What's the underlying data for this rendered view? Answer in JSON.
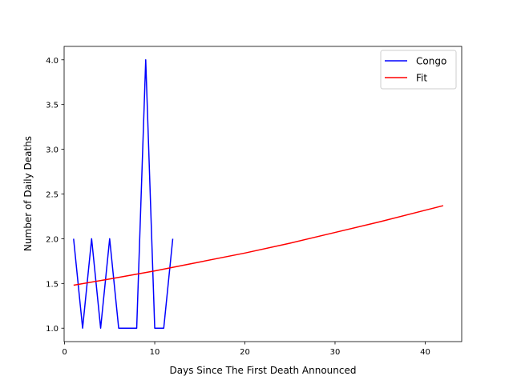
{
  "chart_data": {
    "type": "line",
    "title": "",
    "xlabel": "Days Since The First Death Announced",
    "ylabel": "Number of Daily Deaths",
    "xlim": [
      -0.05,
      44.05
    ],
    "ylim": [
      0.85,
      4.15
    ],
    "xticks": [
      0,
      10,
      20,
      30,
      40
    ],
    "xtick_labels": [
      "0",
      "10",
      "20",
      "30",
      "40"
    ],
    "yticks": [
      1.0,
      1.5,
      2.0,
      2.5,
      3.0,
      3.5,
      4.0
    ],
    "ytick_labels": [
      "1.0",
      "1.5",
      "2.0",
      "2.5",
      "3.0",
      "3.5",
      "4.0"
    ],
    "grid": false,
    "legend": {
      "placement": "top-right",
      "entries": [
        "Congo",
        "Fit"
      ]
    },
    "series": [
      {
        "name": "Congo",
        "color": "#0000ff",
        "x": [
          1,
          2,
          3,
          4,
          5,
          6,
          7,
          8,
          9,
          10,
          11,
          12
        ],
        "y": [
          2,
          1,
          2,
          1,
          2,
          1,
          1,
          1,
          4,
          1,
          1,
          2
        ]
      },
      {
        "name": "Fit",
        "color": "#ff0000",
        "x": [
          1,
          5,
          10,
          15,
          20,
          25,
          30,
          35,
          42
        ],
        "y": [
          1.48,
          1.55,
          1.64,
          1.74,
          1.84,
          1.95,
          2.07,
          2.19,
          2.37
        ]
      }
    ]
  }
}
